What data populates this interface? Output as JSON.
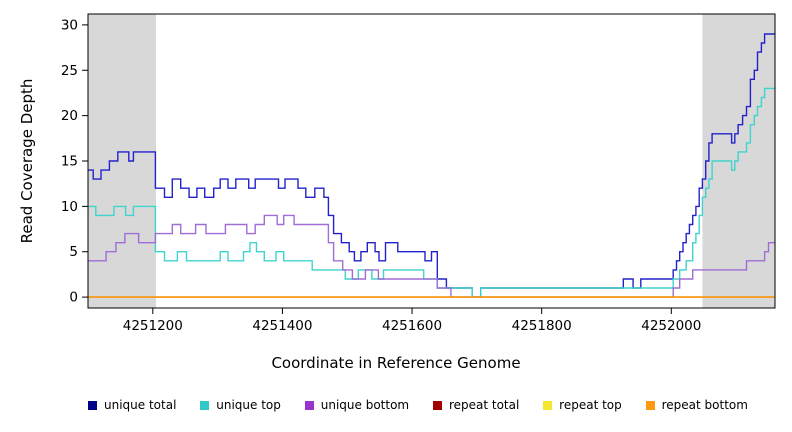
{
  "chart_data": {
    "type": "line",
    "style": "step",
    "title": "",
    "xlabel": "Coordinate in Reference Genome",
    "ylabel": "Read Coverage Depth",
    "xlim": [
      4251100,
      4252160
    ],
    "ylim": [
      0,
      30
    ],
    "x_ticks": [
      4251200,
      4251400,
      4251600,
      4251800,
      4252000
    ],
    "y_ticks": [
      0,
      5,
      10,
      15,
      20,
      25,
      30
    ],
    "grid": false,
    "legend_position": "bottom",
    "shaded_regions": [
      {
        "x0": 4251100,
        "x1": 4251205,
        "color": "#d8d8d8"
      },
      {
        "x0": 4252048,
        "x1": 4252160,
        "color": "#d8d8d8"
      }
    ],
    "series": [
      {
        "name": "unique total",
        "color": "#2222cc",
        "legend_color": "#00008b",
        "points": [
          [
            4251100,
            14
          ],
          [
            4251108,
            13
          ],
          [
            4251120,
            14
          ],
          [
            4251133,
            15
          ],
          [
            4251146,
            16
          ],
          [
            4251163,
            15
          ],
          [
            4251170,
            16
          ],
          [
            4251204,
            12
          ],
          [
            4251218,
            11
          ],
          [
            4251230,
            13
          ],
          [
            4251243,
            12
          ],
          [
            4251256,
            11
          ],
          [
            4251268,
            12
          ],
          [
            4251280,
            11
          ],
          [
            4251294,
            12
          ],
          [
            4251304,
            13
          ],
          [
            4251316,
            12
          ],
          [
            4251328,
            13
          ],
          [
            4251348,
            12
          ],
          [
            4251358,
            13
          ],
          [
            4251394,
            12
          ],
          [
            4251404,
            13
          ],
          [
            4251424,
            12
          ],
          [
            4251436,
            11
          ],
          [
            4251450,
            12
          ],
          [
            4251464,
            11
          ],
          [
            4251471,
            9
          ],
          [
            4251479,
            7
          ],
          [
            4251491,
            6
          ],
          [
            4251503,
            5
          ],
          [
            4251511,
            4
          ],
          [
            4251521,
            5
          ],
          [
            4251531,
            6
          ],
          [
            4251543,
            5
          ],
          [
            4251549,
            4
          ],
          [
            4251559,
            6
          ],
          [
            4251578,
            5
          ],
          [
            4251608,
            5
          ],
          [
            4251620,
            4
          ],
          [
            4251630,
            5
          ],
          [
            4251639,
            2
          ],
          [
            4251653,
            1
          ],
          [
            4251693,
            0
          ],
          [
            4251706,
            1
          ],
          [
            4251926,
            2
          ],
          [
            4251941,
            1
          ],
          [
            4251953,
            2
          ],
          [
            4252003,
            3
          ],
          [
            4252008,
            4
          ],
          [
            4252013,
            5
          ],
          [
            4252018,
            6
          ],
          [
            4252023,
            7
          ],
          [
            4252028,
            8
          ],
          [
            4252033,
            9
          ],
          [
            4252038,
            10
          ],
          [
            4252043,
            12
          ],
          [
            4252048,
            13
          ],
          [
            4252053,
            15
          ],
          [
            4252058,
            17
          ],
          [
            4252063,
            18
          ],
          [
            4252093,
            17
          ],
          [
            4252098,
            18
          ],
          [
            4252103,
            19
          ],
          [
            4252110,
            20
          ],
          [
            4252116,
            21
          ],
          [
            4252122,
            24
          ],
          [
            4252128,
            25
          ],
          [
            4252133,
            27
          ],
          [
            4252139,
            28
          ],
          [
            4252144,
            29
          ]
        ]
      },
      {
        "name": "unique top",
        "color": "#3fd4cc",
        "legend_color": "#2fc9c9",
        "points": [
          [
            4251100,
            10
          ],
          [
            4251112,
            9
          ],
          [
            4251140,
            10
          ],
          [
            4251158,
            9
          ],
          [
            4251170,
            10
          ],
          [
            4251204,
            5
          ],
          [
            4251218,
            4
          ],
          [
            4251238,
            5
          ],
          [
            4251252,
            4
          ],
          [
            4251304,
            5
          ],
          [
            4251316,
            4
          ],
          [
            4251340,
            5
          ],
          [
            4251350,
            6
          ],
          [
            4251360,
            5
          ],
          [
            4251372,
            4
          ],
          [
            4251390,
            5
          ],
          [
            4251402,
            4
          ],
          [
            4251446,
            3
          ],
          [
            4251497,
            2
          ],
          [
            4251517,
            3
          ],
          [
            4251538,
            2
          ],
          [
            4251556,
            3
          ],
          [
            4251618,
            2
          ],
          [
            4251639,
            1
          ],
          [
            4251693,
            0
          ],
          [
            4251706,
            1
          ],
          [
            4252003,
            2
          ],
          [
            4252013,
            3
          ],
          [
            4252023,
            4
          ],
          [
            4252033,
            6
          ],
          [
            4252038,
            7
          ],
          [
            4252043,
            9
          ],
          [
            4252048,
            11
          ],
          [
            4252053,
            12
          ],
          [
            4252058,
            13
          ],
          [
            4252063,
            15
          ],
          [
            4252093,
            14
          ],
          [
            4252098,
            15
          ],
          [
            4252103,
            16
          ],
          [
            4252116,
            17
          ],
          [
            4252122,
            19
          ],
          [
            4252128,
            20
          ],
          [
            4252133,
            21
          ],
          [
            4252139,
            22
          ],
          [
            4252144,
            23
          ]
        ]
      },
      {
        "name": "unique bottom",
        "color": "#a06cd5",
        "legend_color": "#9933cc",
        "points": [
          [
            4251100,
            4
          ],
          [
            4251128,
            5
          ],
          [
            4251143,
            6
          ],
          [
            4251157,
            7
          ],
          [
            4251178,
            6
          ],
          [
            4251204,
            7
          ],
          [
            4251230,
            8
          ],
          [
            4251243,
            7
          ],
          [
            4251266,
            8
          ],
          [
            4251282,
            7
          ],
          [
            4251312,
            8
          ],
          [
            4251345,
            7
          ],
          [
            4251358,
            8
          ],
          [
            4251372,
            9
          ],
          [
            4251392,
            8
          ],
          [
            4251402,
            9
          ],
          [
            4251418,
            8
          ],
          [
            4251464,
            8
          ],
          [
            4251471,
            6
          ],
          [
            4251479,
            4
          ],
          [
            4251493,
            3
          ],
          [
            4251508,
            2
          ],
          [
            4251528,
            3
          ],
          [
            4251548,
            2
          ],
          [
            4251639,
            1
          ],
          [
            4251660,
            0
          ],
          [
            4252003,
            1
          ],
          [
            4252013,
            2
          ],
          [
            4252033,
            3
          ],
          [
            4252103,
            3
          ],
          [
            4252116,
            4
          ],
          [
            4252133,
            4
          ],
          [
            4252144,
            5
          ],
          [
            4252150,
            6
          ]
        ]
      },
      {
        "name": "repeat total",
        "color": "#a00000",
        "legend_color": "#a00000",
        "points": [
          [
            4251100,
            0
          ],
          [
            4252160,
            0
          ]
        ]
      },
      {
        "name": "repeat top",
        "color": "#f2e72e",
        "legend_color": "#f2e72e",
        "points": [
          [
            4251100,
            0
          ],
          [
            4252160,
            0
          ]
        ]
      },
      {
        "name": "repeat bottom",
        "color": "#ff9912",
        "legend_color": "#ff9912",
        "points": [
          [
            4251100,
            0
          ],
          [
            4252160,
            0
          ]
        ]
      }
    ]
  }
}
